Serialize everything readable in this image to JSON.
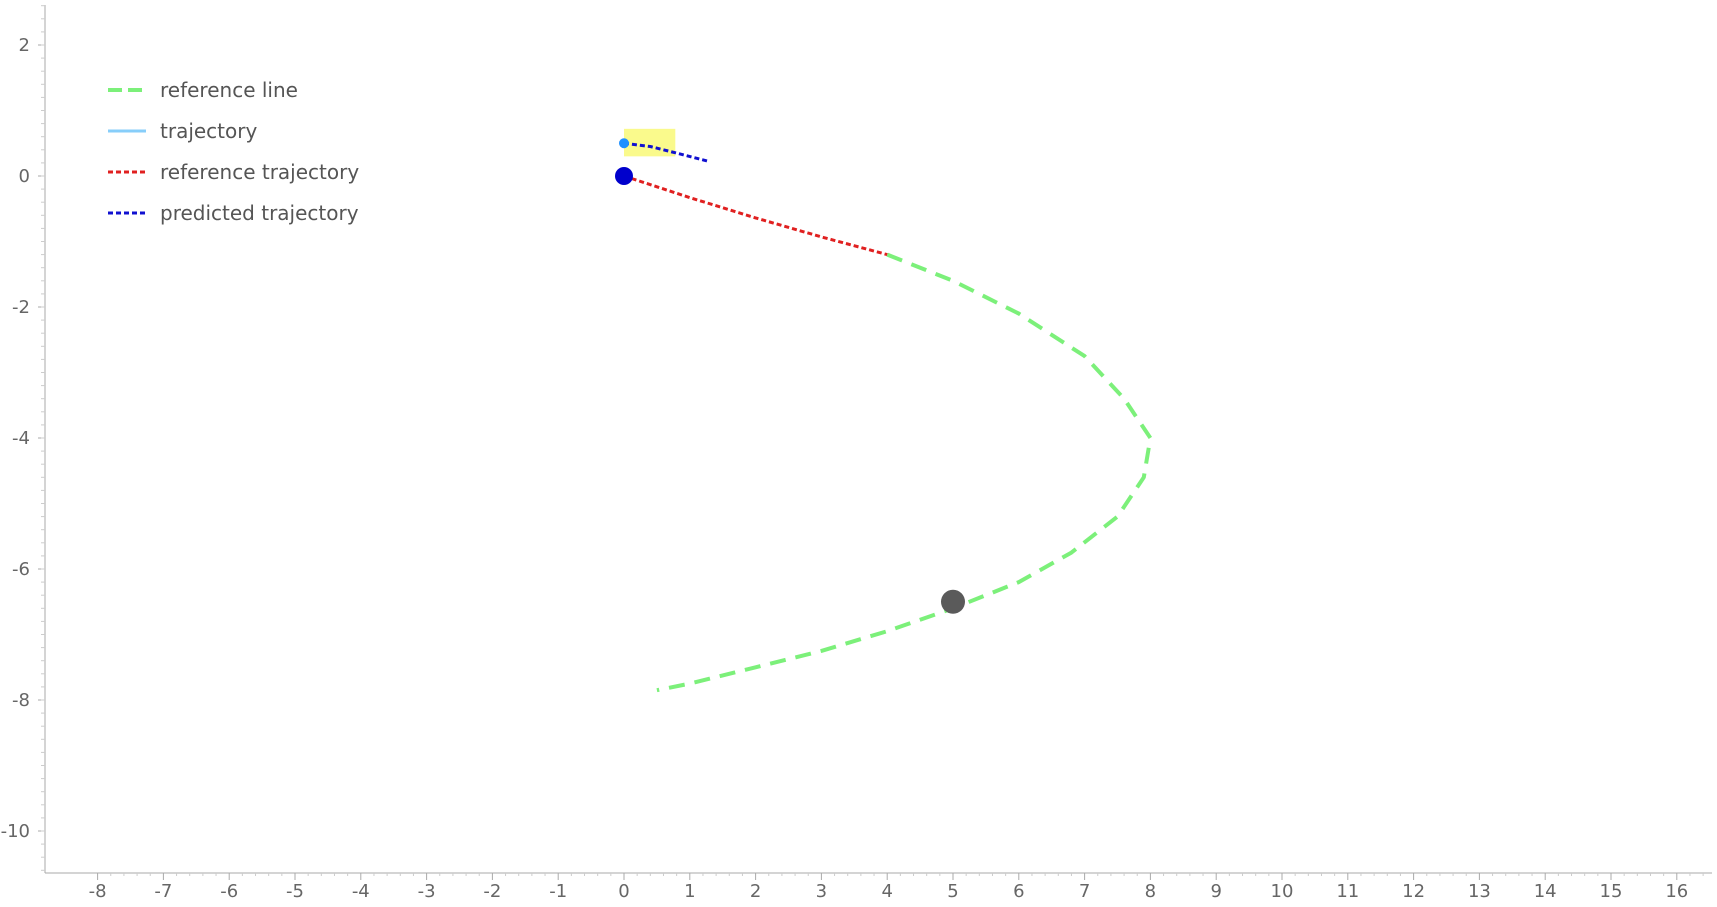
{
  "chart_data": {
    "type": "line",
    "title": "",
    "xlabel": "",
    "ylabel": "",
    "xlim": [
      -8.8,
      17
    ],
    "ylim": [
      -10.6,
      2.6
    ],
    "x_ticks": [
      -8,
      -7,
      -6,
      -5,
      -4,
      -3,
      -2,
      -1,
      0,
      1,
      2,
      3,
      4,
      5,
      6,
      7,
      8,
      9,
      10,
      11,
      12,
      13,
      14,
      15,
      16
    ],
    "y_ticks": [
      2,
      0,
      -2,
      -4,
      -6,
      -8,
      -10
    ],
    "grid": false,
    "legend_position": "top-left",
    "series": [
      {
        "name": "reference line",
        "color": "#7cf07a",
        "style": "dashed",
        "points": [
          [
            4.0,
            -1.2
          ],
          [
            5.0,
            -1.6
          ],
          [
            6.0,
            -2.1
          ],
          [
            7.0,
            -2.75
          ],
          [
            7.6,
            -3.4
          ],
          [
            8.0,
            -4.0
          ],
          [
            7.9,
            -4.6
          ],
          [
            7.5,
            -5.2
          ],
          [
            6.8,
            -5.75
          ],
          [
            6.0,
            -6.2
          ],
          [
            5.0,
            -6.6
          ],
          [
            4.0,
            -6.95
          ],
          [
            3.0,
            -7.25
          ],
          [
            2.0,
            -7.5
          ],
          [
            1.0,
            -7.75
          ],
          [
            0.5,
            -7.85
          ]
        ]
      },
      {
        "name": "trajectory",
        "color": "#87cefa",
        "style": "solid",
        "points": []
      },
      {
        "name": "reference trajectory",
        "color": "#e02020",
        "style": "dotted",
        "points": [
          [
            0.0,
            0.0
          ],
          [
            1.0,
            -0.33
          ],
          [
            2.0,
            -0.64
          ],
          [
            3.0,
            -0.93
          ],
          [
            4.0,
            -1.2
          ]
        ]
      },
      {
        "name": "predicted trajectory",
        "color": "#1010d0",
        "style": "dotted",
        "points": [
          [
            0.0,
            0.5
          ],
          [
            0.4,
            0.45
          ],
          [
            0.8,
            0.35
          ],
          [
            1.3,
            0.22
          ]
        ]
      }
    ],
    "markers": [
      {
        "name": "start-point",
        "x": 0.0,
        "y": 0.0,
        "color": "#0000cc"
      },
      {
        "name": "predicted-start",
        "x": 0.0,
        "y": 0.5,
        "color": "#1e90ff"
      },
      {
        "name": "obstacle",
        "x": 5.0,
        "y": -6.5,
        "color": "#5a5a5a"
      }
    ],
    "highlight_box": {
      "x0": 0.0,
      "x1": 0.78,
      "y0": 0.3,
      "y1": 0.72,
      "color": "#fafa8c"
    }
  }
}
